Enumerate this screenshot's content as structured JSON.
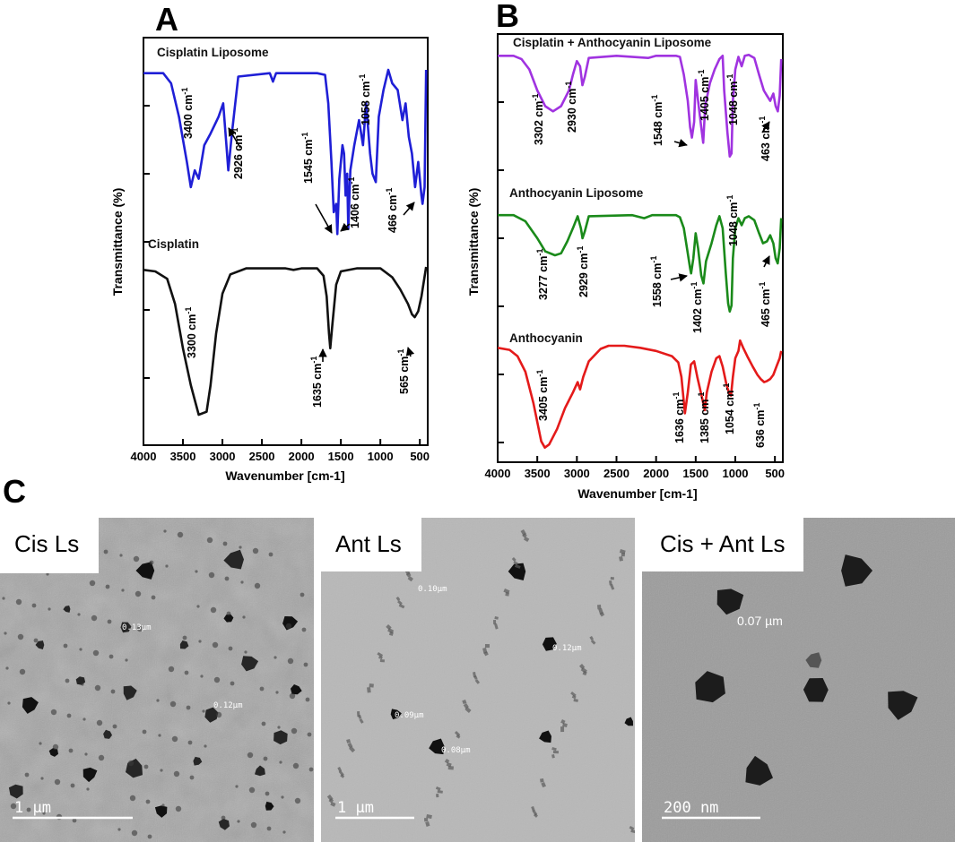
{
  "panels": {
    "a": "A",
    "b": "B",
    "c": "C"
  },
  "colors": {
    "cis_lipo": "#1f1fd6",
    "cisplatin": "#111111",
    "combo_lipo": "#a033e0",
    "ant_lipo": "#1a8a1a",
    "anthocyanin": "#e41a1a",
    "arrow": "#000000"
  },
  "chart_data": [
    {
      "type": "line",
      "panel": "A",
      "xlabel": "Wavenumber [cm-1]",
      "ylabel": "Transmittance (%)",
      "xlim": [
        4000,
        400
      ],
      "x_reversed": true,
      "xticks": [
        4000,
        3500,
        3000,
        2500,
        2000,
        1500,
        1000,
        500
      ],
      "series": [
        {
          "name": "Cisplatin Liposome",
          "color": "#1f1fd6",
          "points": [
            [
              4000,
              0.98
            ],
            [
              3750,
              0.98
            ],
            [
              3650,
              0.92
            ],
            [
              3550,
              0.72
            ],
            [
              3450,
              0.45
            ],
            [
              3400,
              0.3
            ],
            [
              3350,
              0.4
            ],
            [
              3300,
              0.35
            ],
            [
              3230,
              0.55
            ],
            [
              3150,
              0.62
            ],
            [
              3050,
              0.72
            ],
            [
              2990,
              0.8
            ],
            [
              2950,
              0.55
            ],
            [
              2926,
              0.4
            ],
            [
              2880,
              0.62
            ],
            [
              2800,
              0.96
            ],
            [
              2400,
              0.98
            ],
            [
              2360,
              0.93
            ],
            [
              2320,
              0.98
            ],
            [
              2000,
              0.98
            ],
            [
              1800,
              0.98
            ],
            [
              1700,
              0.97
            ],
            [
              1660,
              0.8
            ],
            [
              1620,
              0.45
            ],
            [
              1590,
              0.15
            ],
            [
              1560,
              0.2
            ],
            [
              1545,
              0.02
            ],
            [
              1520,
              0.35
            ],
            [
              1480,
              0.55
            ],
            [
              1460,
              0.5
            ],
            [
              1440,
              0.25
            ],
            [
              1420,
              0.38
            ],
            [
              1406,
              0.05
            ],
            [
              1380,
              0.4
            ],
            [
              1330,
              0.55
            ],
            [
              1270,
              0.7
            ],
            [
              1220,
              0.55
            ],
            [
              1180,
              0.8
            ],
            [
              1130,
              0.5
            ],
            [
              1100,
              0.38
            ],
            [
              1058,
              0.33
            ],
            [
              1020,
              0.72
            ],
            [
              960,
              0.88
            ],
            [
              900,
              1.0
            ],
            [
              850,
              0.92
            ],
            [
              780,
              0.88
            ],
            [
              720,
              0.7
            ],
            [
              680,
              0.8
            ],
            [
              640,
              0.6
            ],
            [
              600,
              0.5
            ],
            [
              560,
              0.3
            ],
            [
              520,
              0.45
            ],
            [
              480,
              0.25
            ],
            [
              466,
              0.2
            ],
            [
              440,
              0.3
            ],
            [
              420,
              1.0
            ]
          ]
        },
        {
          "name": "Cisplatin",
          "color": "#111111",
          "points": [
            [
              4000,
              0.98
            ],
            [
              3850,
              0.97
            ],
            [
              3700,
              0.92
            ],
            [
              3600,
              0.75
            ],
            [
              3500,
              0.45
            ],
            [
              3400,
              0.2
            ],
            [
              3300,
              0.0
            ],
            [
              3200,
              0.02
            ],
            [
              3150,
              0.2
            ],
            [
              3080,
              0.55
            ],
            [
              3000,
              0.82
            ],
            [
              2900,
              0.95
            ],
            [
              2700,
              0.99
            ],
            [
              2200,
              0.99
            ],
            [
              2100,
              0.98
            ],
            [
              2000,
              0.99
            ],
            [
              1800,
              0.99
            ],
            [
              1720,
              0.94
            ],
            [
              1680,
              0.8
            ],
            [
              1650,
              0.55
            ],
            [
              1635,
              0.45
            ],
            [
              1610,
              0.6
            ],
            [
              1560,
              0.88
            ],
            [
              1500,
              0.97
            ],
            [
              1300,
              0.99
            ],
            [
              1000,
              0.99
            ],
            [
              850,
              0.93
            ],
            [
              750,
              0.85
            ],
            [
              650,
              0.75
            ],
            [
              600,
              0.68
            ],
            [
              565,
              0.66
            ],
            [
              520,
              0.7
            ],
            [
              480,
              0.8
            ],
            [
              450,
              0.9
            ],
            [
              420,
              1.0
            ]
          ]
        }
      ],
      "annotations": [
        "3400 cm-1",
        "2926 cm-1",
        "1545 cm-1",
        "1406 cm-1",
        "1058 cm-1",
        "466 cm-1",
        "3300 cm-1",
        "1635 cm-1",
        "565 cm-1"
      ]
    },
    {
      "type": "line",
      "panel": "B",
      "xlabel": "Wavenumber [cm-1]",
      "ylabel": "Transmittance (%)",
      "xlim": [
        4000,
        400
      ],
      "x_reversed": true,
      "xticks": [
        4000,
        3500,
        3000,
        2500,
        2000,
        1500,
        1000,
        500
      ],
      "series": [
        {
          "name": "Cisplatin + Anthocyanin Liposome",
          "color": "#a033e0",
          "points": [
            [
              4000,
              0.98
            ],
            [
              3800,
              0.98
            ],
            [
              3700,
              0.95
            ],
            [
              3600,
              0.85
            ],
            [
              3500,
              0.65
            ],
            [
              3400,
              0.5
            ],
            [
              3302,
              0.45
            ],
            [
              3200,
              0.5
            ],
            [
              3100,
              0.65
            ],
            [
              3050,
              0.8
            ],
            [
              3000,
              0.93
            ],
            [
              2960,
              0.88
            ],
            [
              2930,
              0.7
            ],
            [
              2900,
              0.78
            ],
            [
              2850,
              0.96
            ],
            [
              2500,
              0.98
            ],
            [
              2100,
              0.96
            ],
            [
              2000,
              0.98
            ],
            [
              1750,
              0.98
            ],
            [
              1700,
              0.97
            ],
            [
              1650,
              0.8
            ],
            [
              1600,
              0.55
            ],
            [
              1570,
              0.3
            ],
            [
              1548,
              0.2
            ],
            [
              1520,
              0.35
            ],
            [
              1500,
              0.75
            ],
            [
              1470,
              0.55
            ],
            [
              1430,
              0.3
            ],
            [
              1405,
              0.15
            ],
            [
              1380,
              0.5
            ],
            [
              1320,
              0.72
            ],
            [
              1260,
              0.85
            ],
            [
              1200,
              0.95
            ],
            [
              1160,
              0.98
            ],
            [
              1140,
              0.65
            ],
            [
              1100,
              0.25
            ],
            [
              1070,
              0.02
            ],
            [
              1048,
              0.05
            ],
            [
              1030,
              0.55
            ],
            [
              1000,
              0.85
            ],
            [
              960,
              0.97
            ],
            [
              920,
              0.88
            ],
            [
              880,
              0.98
            ],
            [
              830,
              0.99
            ],
            [
              760,
              0.96
            ],
            [
              700,
              0.8
            ],
            [
              640,
              0.65
            ],
            [
              600,
              0.6
            ],
            [
              560,
              0.55
            ],
            [
              520,
              0.62
            ],
            [
              490,
              0.5
            ],
            [
              463,
              0.45
            ],
            [
              440,
              0.6
            ],
            [
              420,
              0.95
            ]
          ]
        },
        {
          "name": "Anthocyanin Liposome",
          "color": "#1a8a1a",
          "points": [
            [
              4000,
              0.98
            ],
            [
              3800,
              0.98
            ],
            [
              3650,
              0.92
            ],
            [
              3500,
              0.75
            ],
            [
              3400,
              0.62
            ],
            [
              3277,
              0.58
            ],
            [
              3200,
              0.6
            ],
            [
              3120,
              0.72
            ],
            [
              3050,
              0.85
            ],
            [
              2990,
              0.97
            ],
            [
              2950,
              0.85
            ],
            [
              2929,
              0.75
            ],
            [
              2900,
              0.82
            ],
            [
              2850,
              0.97
            ],
            [
              2300,
              0.98
            ],
            [
              2150,
              0.95
            ],
            [
              2050,
              0.98
            ],
            [
              1750,
              0.98
            ],
            [
              1700,
              0.96
            ],
            [
              1650,
              0.85
            ],
            [
              1600,
              0.6
            ],
            [
              1570,
              0.45
            ],
            [
              1558,
              0.4
            ],
            [
              1530,
              0.55
            ],
            [
              1500,
              0.8
            ],
            [
              1470,
              0.65
            ],
            [
              1430,
              0.38
            ],
            [
              1402,
              0.3
            ],
            [
              1370,
              0.52
            ],
            [
              1300,
              0.7
            ],
            [
              1240,
              0.88
            ],
            [
              1200,
              0.97
            ],
            [
              1160,
              0.85
            ],
            [
              1120,
              0.4
            ],
            [
              1090,
              0.1
            ],
            [
              1070,
              0.02
            ],
            [
              1048,
              0.08
            ],
            [
              1030,
              0.55
            ],
            [
              1000,
              0.85
            ],
            [
              960,
              0.95
            ],
            [
              920,
              0.88
            ],
            [
              880,
              0.95
            ],
            [
              830,
              0.97
            ],
            [
              760,
              0.93
            ],
            [
              700,
              0.8
            ],
            [
              650,
              0.7
            ],
            [
              600,
              0.72
            ],
            [
              560,
              0.78
            ],
            [
              520,
              0.7
            ],
            [
              490,
              0.55
            ],
            [
              465,
              0.5
            ],
            [
              440,
              0.65
            ],
            [
              420,
              0.95
            ]
          ]
        },
        {
          "name": "Anthocyanin",
          "color": "#e41a1a",
          "points": [
            [
              4000,
              0.98
            ],
            [
              3850,
              0.96
            ],
            [
              3750,
              0.9
            ],
            [
              3650,
              0.75
            ],
            [
              3550,
              0.45
            ],
            [
              3450,
              0.08
            ],
            [
              3405,
              0.02
            ],
            [
              3350,
              0.05
            ],
            [
              3250,
              0.2
            ],
            [
              3150,
              0.4
            ],
            [
              3050,
              0.55
            ],
            [
              2990,
              0.65
            ],
            [
              2960,
              0.58
            ],
            [
              2920,
              0.7
            ],
            [
              2850,
              0.85
            ],
            [
              2700,
              0.97
            ],
            [
              2600,
              1.0
            ],
            [
              2400,
              1.0
            ],
            [
              2200,
              0.98
            ],
            [
              2000,
              0.95
            ],
            [
              1800,
              0.9
            ],
            [
              1720,
              0.84
            ],
            [
              1680,
              0.7
            ],
            [
              1636,
              0.35
            ],
            [
              1600,
              0.55
            ],
            [
              1560,
              0.82
            ],
            [
              1520,
              0.85
            ],
            [
              1480,
              0.7
            ],
            [
              1420,
              0.5
            ],
            [
              1385,
              0.38
            ],
            [
              1360,
              0.55
            ],
            [
              1300,
              0.75
            ],
            [
              1240,
              0.88
            ],
            [
              1200,
              0.9
            ],
            [
              1160,
              0.8
            ],
            [
              1110,
              0.62
            ],
            [
              1080,
              0.55
            ],
            [
              1054,
              0.52
            ],
            [
              1030,
              0.7
            ],
            [
              1000,
              0.88
            ],
            [
              960,
              0.95
            ],
            [
              940,
              1.05
            ],
            [
              900,
              0.98
            ],
            [
              850,
              0.9
            ],
            [
              780,
              0.8
            ],
            [
              720,
              0.72
            ],
            [
              680,
              0.68
            ],
            [
              636,
              0.65
            ],
            [
              600,
              0.66
            ],
            [
              560,
              0.68
            ],
            [
              520,
              0.72
            ],
            [
              480,
              0.8
            ],
            [
              440,
              0.88
            ],
            [
              420,
              0.95
            ]
          ]
        }
      ],
      "annotations": [
        "3302 cm-1",
        "2930 cm-1",
        "1548 cm-1",
        "1405 cm-1",
        "1048 cm-1",
        "463 cm-1",
        "3277 cm-1",
        "2929 cm-1",
        "1558 cm-1",
        "1402 cm-1",
        "1048 cm-1",
        "465 cm-1",
        "3405 cm-1",
        "1636 cm-1",
        "1385 cm-1",
        "1054 cm-1",
        "636 cm-1"
      ]
    }
  ],
  "tem": [
    {
      "label": "Cis Ls",
      "scale": "1 µm",
      "measurements": [
        "0.13µm",
        "0.12µm"
      ]
    },
    {
      "label": "Ant Ls",
      "scale": "1 µm",
      "measurements": [
        "0.10µm",
        "0.12µm",
        "0.09µm",
        "0.08µm"
      ]
    },
    {
      "label": "Cis + Ant Ls",
      "scale": "200 nm",
      "measurements": [
        "0.07 µm"
      ]
    }
  ]
}
